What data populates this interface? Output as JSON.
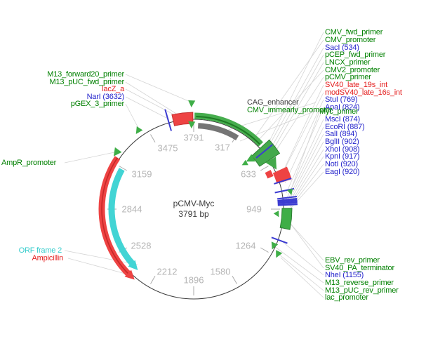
{
  "plasmid": {
    "name": "pCMV-Myc",
    "size_label": "3791 bp"
  },
  "ticks": [
    "3791",
    "317",
    "633",
    "949",
    "1264",
    "1580",
    "1896",
    "2212",
    "2528",
    "2844",
    "3159",
    "3475"
  ],
  "labels": {
    "right_top": [
      {
        "text": "CMV_fwd_primer",
        "color": "green"
      },
      {
        "text": "CMV_promoter",
        "color": "green"
      },
      {
        "text": "SacI (534)",
        "color": "blue"
      },
      {
        "text": "pCEP_fwd_primer",
        "color": "green"
      },
      {
        "text": "LNCX_primer",
        "color": "green"
      },
      {
        "text": "CMV2_promoter",
        "color": "green"
      },
      {
        "text": "pCMV_primer",
        "color": "green"
      },
      {
        "text": "SV40_late_19s_int",
        "color": "red"
      },
      {
        "text": "modSV40_late_16s_int",
        "color": "red"
      },
      {
        "text": "StuI (769)",
        "color": "blue"
      },
      {
        "text": "ApaI (824)",
        "color": "blue"
      },
      {
        "text": "Myc_primer",
        "color": "green"
      },
      {
        "text": "MscI (874)",
        "color": "blue"
      },
      {
        "text": "EcoRI (887)",
        "color": "blue"
      },
      {
        "text": "SalI (894)",
        "color": "blue"
      },
      {
        "text": "BglII (902)",
        "color": "blue"
      },
      {
        "text": "XhoI (908)",
        "color": "blue"
      },
      {
        "text": "KpnI (917)",
        "color": "blue"
      },
      {
        "text": "NotI (920)",
        "color": "blue"
      },
      {
        "text": "EagI (920)",
        "color": "blue"
      }
    ],
    "mid": [
      {
        "text": "CAG_enhancer",
        "color": "dark"
      },
      {
        "text": "CMV_immearly_promoter",
        "color": "green"
      }
    ],
    "left": [
      {
        "text": "M13_forward20_primer",
        "color": "green"
      },
      {
        "text": "M13_pUC_fwd_primer",
        "color": "green"
      },
      {
        "text": "lacZ_a",
        "color": "red"
      },
      {
        "text": "NarI (3632)",
        "color": "blue"
      },
      {
        "text": "pGEX_3_primer",
        "color": "green"
      }
    ],
    "left_lower": [
      {
        "text": "AmpR_promoter",
        "color": "green"
      },
      {
        "text": "ORF frame 2",
        "color": "cyan"
      },
      {
        "text": "Ampicillin",
        "color": "red"
      }
    ],
    "right_bottom": [
      {
        "text": "EBV_rev_primer",
        "color": "green"
      },
      {
        "text": "SV40_PA_terminator",
        "color": "green"
      },
      {
        "text": "NheI (1155)",
        "color": "blue"
      },
      {
        "text": "M13_reverse_primer",
        "color": "green"
      },
      {
        "text": "M13_pUC_rev_primer",
        "color": "green"
      },
      {
        "text": "lac_promoter",
        "color": "green"
      }
    ]
  },
  "colors": {
    "label_green": "#008000",
    "label_blue": "#2424cc",
    "label_red": "#e41e1e",
    "label_cyan": "#35cccc",
    "label_dark": "#3d3d3d",
    "tick_text": "#b5b5b5",
    "feature_green": "#46ad4d",
    "feature_dark_green": "#1e7a24",
    "feature_gray": "#757575",
    "feature_red": "#ee4343",
    "feature_cyan": "#42d4d4",
    "restriction_site_blue": "#3b3bd1",
    "leader_line": "#d4d4d4",
    "backbone": "#3c3c3c"
  }
}
